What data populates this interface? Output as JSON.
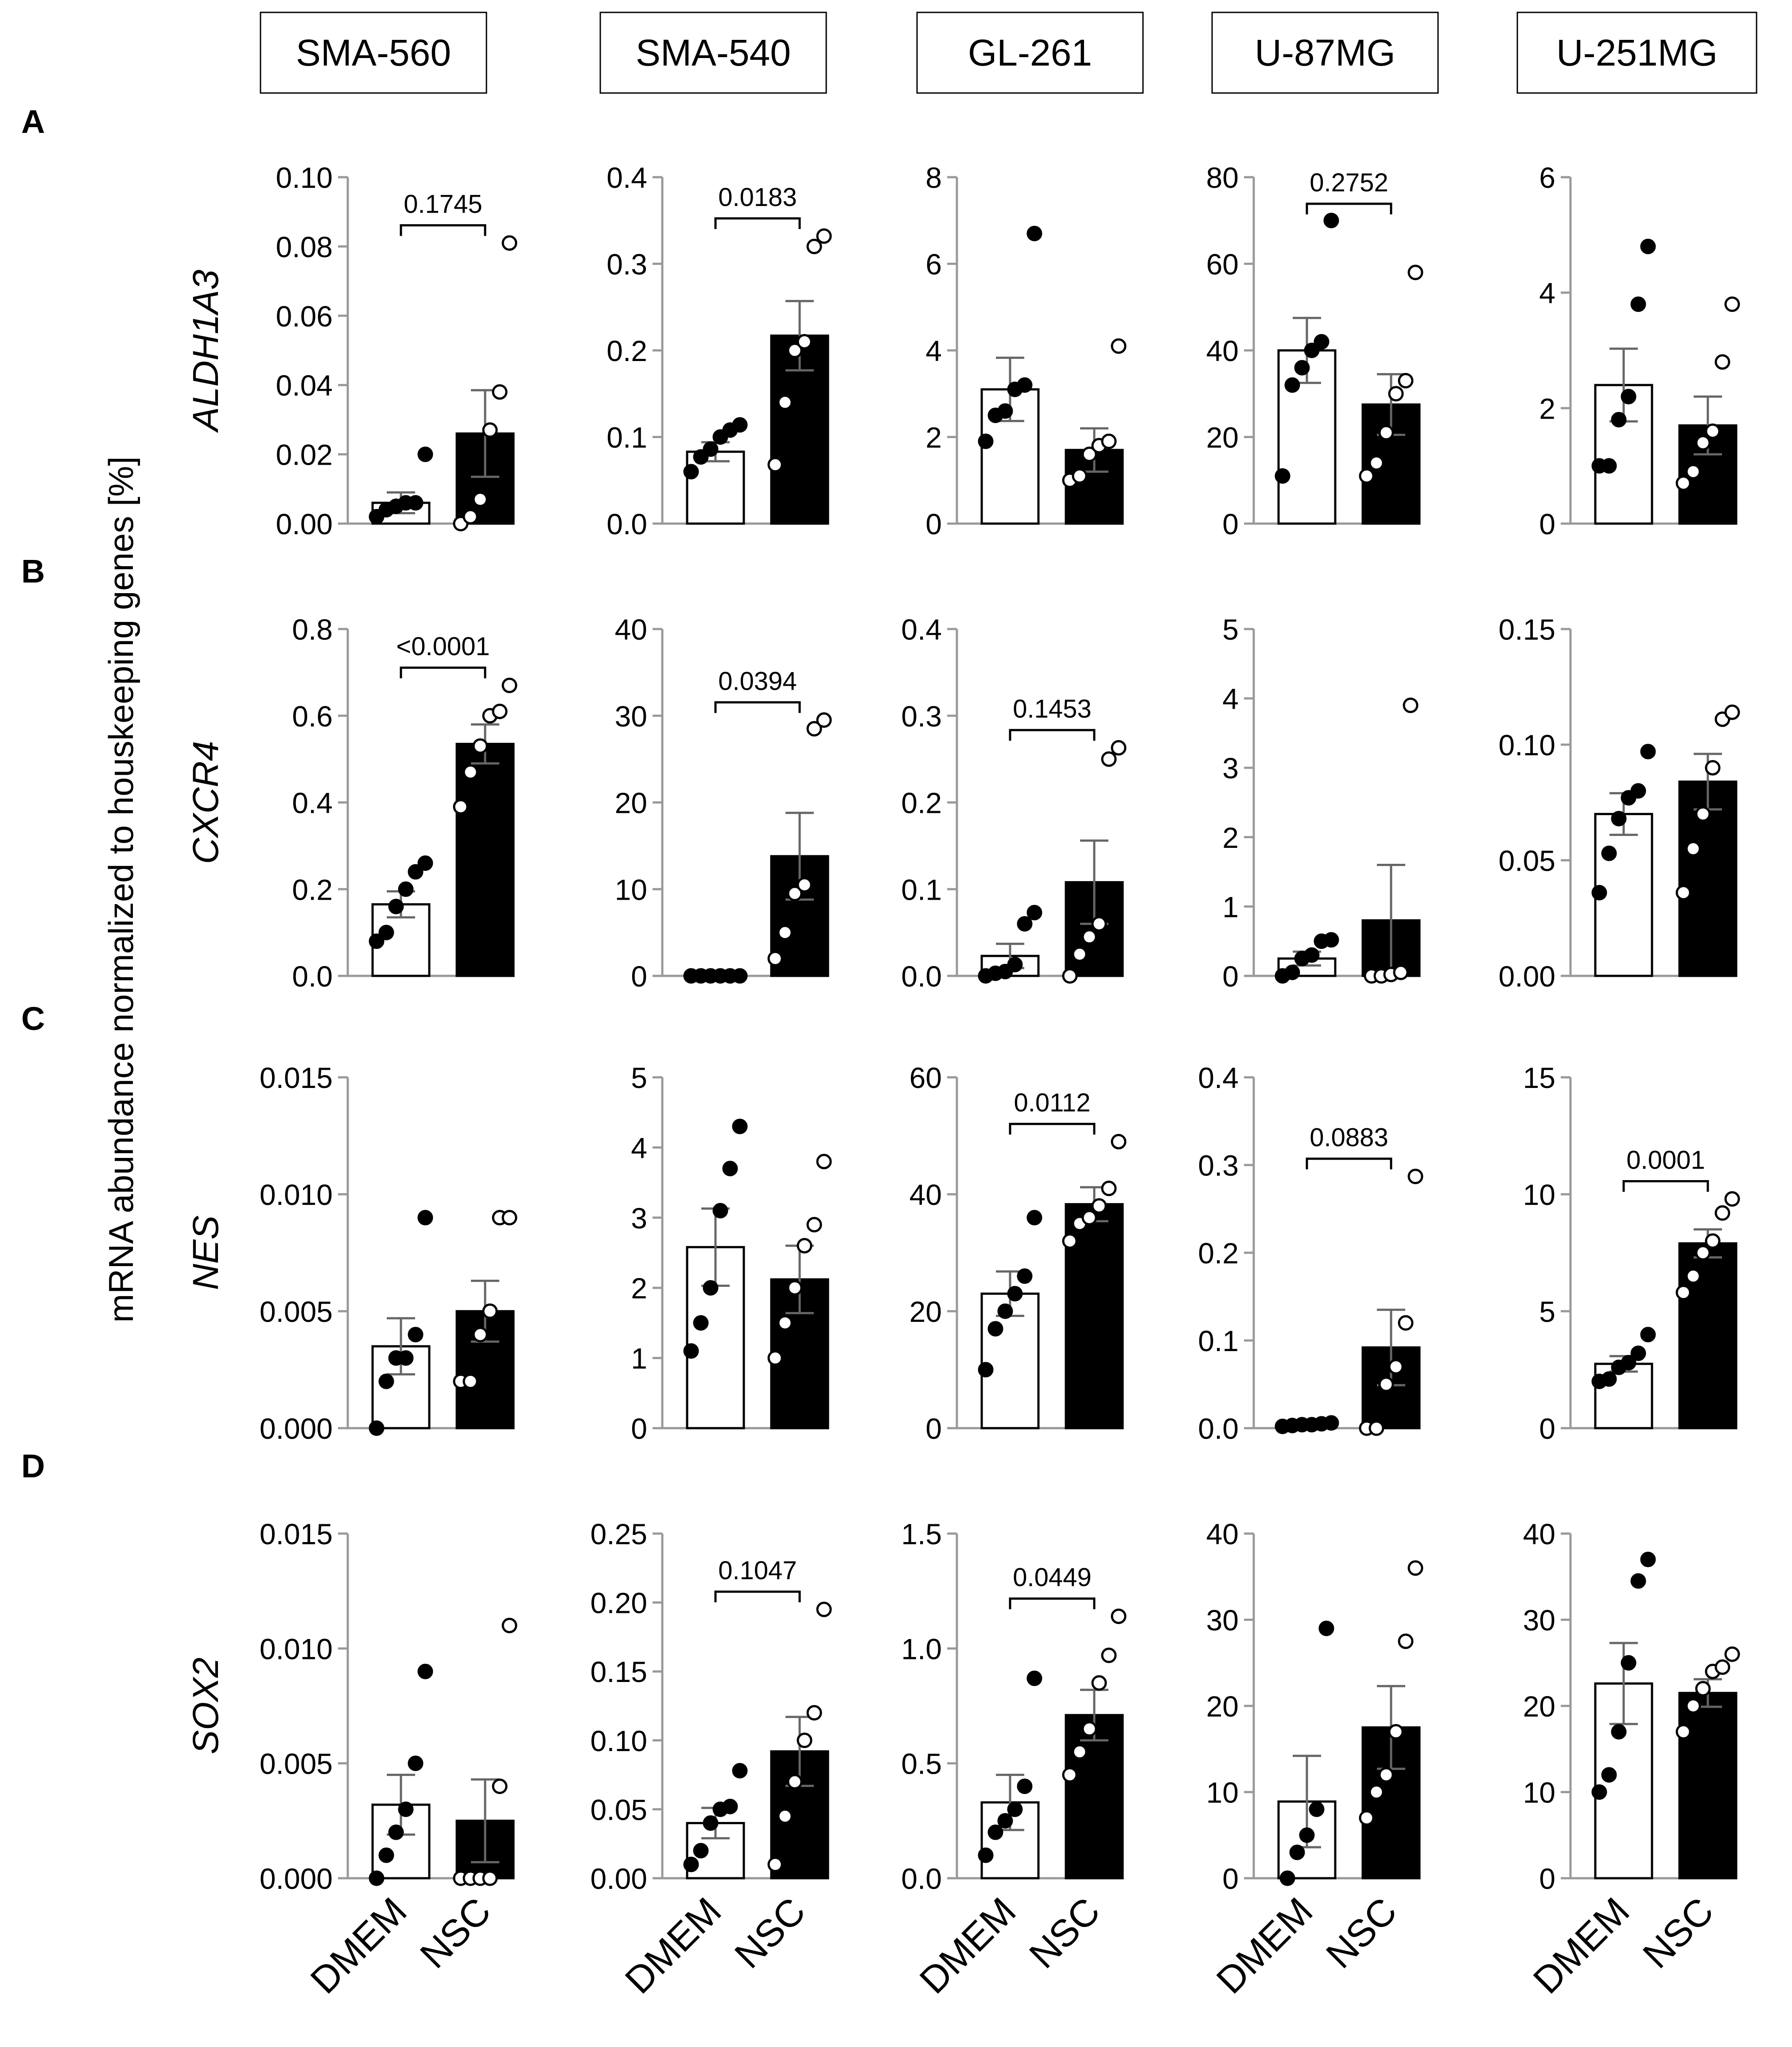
{
  "figure": {
    "y_axis_title": "mRNA abundance normalized to houskeeping genes [%]",
    "x_categories": [
      "DMEM",
      "NSC"
    ]
  },
  "cell_lines": [
    "SMA-560",
    "SMA-540",
    "GL-261",
    "U-87MG",
    "U-251MG"
  ],
  "rows": [
    {
      "label": "A",
      "gene": "ALDH1A3"
    },
    {
      "label": "B",
      "gene": "CXCR4"
    },
    {
      "label": "C",
      "gene": "NES"
    },
    {
      "label": "D",
      "gene": "SOX2"
    }
  ],
  "colors": {
    "dmem_fill": "#ffffff",
    "nsc_fill": "#000000",
    "axis": "#999999",
    "error": "#666666"
  },
  "chart_data": [
    {
      "type": "bar",
      "row": "A",
      "gene": "ALDH1A3",
      "cell_line": "SMA-560",
      "categories": [
        "DMEM",
        "NSC"
      ],
      "ylim": [
        0,
        0.1
      ],
      "ticks": [
        0,
        0.02,
        0.04,
        0.06,
        0.08,
        0.1
      ],
      "tick_labels": [
        "0.00",
        "0.02",
        "0.04",
        "0.06",
        "0.08",
        "0.10"
      ],
      "means": [
        0.006,
        0.026
      ],
      "sem": [
        0.003,
        0.0125
      ],
      "points": [
        [
          0.002,
          0.004,
          0.005,
          0.006,
          0.006,
          0.02
        ],
        [
          0.0,
          0.002,
          0.007,
          0.027,
          0.038,
          0.081
        ]
      ],
      "pvalue": "0.1745"
    },
    {
      "type": "bar",
      "row": "A",
      "gene": "ALDH1A3",
      "cell_line": "SMA-540",
      "categories": [
        "DMEM",
        "NSC"
      ],
      "ylim": [
        0,
        0.4
      ],
      "ticks": [
        0,
        0.1,
        0.2,
        0.3,
        0.4
      ],
      "tick_labels": [
        "0.0",
        "0.1",
        "0.2",
        "0.3",
        "0.4"
      ],
      "means": [
        0.083,
        0.217
      ],
      "sem": [
        0.011,
        0.04
      ],
      "points": [
        [
          0.06,
          0.077,
          0.086,
          0.1,
          0.108,
          0.114
        ],
        [
          0.068,
          0.14,
          0.2,
          0.21,
          0.32,
          0.332
        ]
      ],
      "pvalue": "0.0183"
    },
    {
      "type": "bar",
      "row": "A",
      "gene": "ALDH1A3",
      "cell_line": "GL-261",
      "categories": [
        "DMEM",
        "NSC"
      ],
      "ylim": [
        0,
        8
      ],
      "ticks": [
        0,
        2,
        4,
        6,
        8
      ],
      "tick_labels": [
        "0",
        "2",
        "4",
        "6",
        "8"
      ],
      "means": [
        3.1,
        1.7
      ],
      "sem": [
        0.73,
        0.5
      ],
      "points": [
        [
          1.9,
          2.5,
          2.6,
          3.1,
          3.2,
          6.7
        ],
        [
          1.0,
          1.1,
          1.6,
          1.8,
          1.9,
          4.1
        ]
      ],
      "pvalue": ""
    },
    {
      "type": "bar",
      "row": "A",
      "gene": "ALDH1A3",
      "cell_line": "U-87MG",
      "categories": [
        "DMEM",
        "NSC"
      ],
      "ylim": [
        0,
        80
      ],
      "ticks": [
        0,
        20,
        40,
        60,
        80
      ],
      "tick_labels": [
        "0",
        "20",
        "40",
        "60",
        "80"
      ],
      "means": [
        40,
        27.5
      ],
      "sem": [
        7.5,
        7.0
      ],
      "points": [
        [
          11,
          32,
          36,
          40,
          42,
          70
        ],
        [
          11,
          14,
          21,
          30,
          33,
          58
        ]
      ],
      "pvalue": "0.2752"
    },
    {
      "type": "bar",
      "row": "A",
      "gene": "ALDH1A3",
      "cell_line": "U-251MG",
      "categories": [
        "DMEM",
        "NSC"
      ],
      "ylim": [
        0,
        6
      ],
      "ticks": [
        0,
        2,
        4,
        6
      ],
      "tick_labels": [
        "0",
        "2",
        "4",
        "6"
      ],
      "means": [
        2.4,
        1.7
      ],
      "sem": [
        0.63,
        0.5
      ],
      "points": [
        [
          1.0,
          1.0,
          1.8,
          2.2,
          3.8,
          4.8
        ],
        [
          0.7,
          0.9,
          1.4,
          1.6,
          2.8,
          3.8
        ]
      ],
      "pvalue": ""
    },
    {
      "type": "bar",
      "row": "B",
      "gene": "CXCR4",
      "cell_line": "SMA-560",
      "categories": [
        "DMEM",
        "NSC"
      ],
      "ylim": [
        0,
        0.8
      ],
      "ticks": [
        0,
        0.2,
        0.4,
        0.6,
        0.8
      ],
      "tick_labels": [
        "0.0",
        "0.2",
        "0.4",
        "0.6",
        "0.8"
      ],
      "means": [
        0.165,
        0.535
      ],
      "sem": [
        0.03,
        0.045
      ],
      "points": [
        [
          0.08,
          0.1,
          0.16,
          0.2,
          0.24,
          0.26
        ],
        [
          0.39,
          0.47,
          0.53,
          0.6,
          0.61,
          0.67
        ]
      ],
      "pvalue": "<0.0001"
    },
    {
      "type": "bar",
      "row": "B",
      "gene": "CXCR4",
      "cell_line": "SMA-540",
      "categories": [
        "DMEM",
        "NSC"
      ],
      "ylim": [
        0,
        40
      ],
      "ticks": [
        0,
        10,
        20,
        30,
        40
      ],
      "tick_labels": [
        "0",
        "10",
        "20",
        "30",
        "40"
      ],
      "means": [
        0.05,
        13.8
      ],
      "sem": [
        0.02,
        5.0
      ],
      "points": [
        [
          0.0,
          0.0,
          0.0,
          0.0,
          0.0,
          0.0
        ],
        [
          2.0,
          5.0,
          9.5,
          10.5,
          28.5,
          29.5
        ]
      ],
      "pvalue": "0.0394"
    },
    {
      "type": "bar",
      "row": "B",
      "gene": "CXCR4",
      "cell_line": "GL-261",
      "categories": [
        "DMEM",
        "NSC"
      ],
      "ylim": [
        0,
        0.4
      ],
      "ticks": [
        0,
        0.1,
        0.2,
        0.3,
        0.4
      ],
      "tick_labels": [
        "0.0",
        "0.1",
        "0.2",
        "0.3",
        "0.4"
      ],
      "means": [
        0.023,
        0.108
      ],
      "sem": [
        0.014,
        0.048
      ],
      "points": [
        [
          0.0,
          0.003,
          0.005,
          0.013,
          0.06,
          0.073
        ],
        [
          0.0,
          0.025,
          0.045,
          0.06,
          0.25,
          0.263
        ]
      ],
      "pvalue": "0.1453"
    },
    {
      "type": "bar",
      "row": "B",
      "gene": "CXCR4",
      "cell_line": "U-87MG",
      "categories": [
        "DMEM",
        "NSC"
      ],
      "ylim": [
        0,
        5
      ],
      "ticks": [
        0,
        1,
        2,
        3,
        4,
        5
      ],
      "tick_labels": [
        "0",
        "1",
        "2",
        "3",
        "4",
        "5"
      ],
      "means": [
        0.25,
        0.8
      ],
      "sem": [
        0.1,
        0.8
      ],
      "points": [
        [
          0.0,
          0.05,
          0.25,
          0.3,
          0.5,
          0.52
        ],
        [
          0.0,
          0.0,
          0.02,
          0.05,
          3.9
        ]
      ],
      "pvalue": ""
    },
    {
      "type": "bar",
      "row": "B",
      "gene": "CXCR4",
      "cell_line": "U-251MG",
      "categories": [
        "DMEM",
        "NSC"
      ],
      "ylim": [
        0,
        0.15
      ],
      "ticks": [
        0,
        0.05,
        0.1,
        0.15
      ],
      "tick_labels": [
        "0.00",
        "0.05",
        "0.10",
        "0.15"
      ],
      "means": [
        0.07,
        0.084
      ],
      "sem": [
        0.009,
        0.012
      ],
      "points": [
        [
          0.036,
          0.053,
          0.068,
          0.077,
          0.08,
          0.097
        ],
        [
          0.036,
          0.055,
          0.07,
          0.09,
          0.111,
          0.114
        ]
      ],
      "pvalue": ""
    },
    {
      "type": "bar",
      "row": "C",
      "gene": "NES",
      "cell_line": "SMA-560",
      "categories": [
        "DMEM",
        "NSC"
      ],
      "ylim": [
        0,
        0.015
      ],
      "ticks": [
        0,
        0.005,
        0.01,
        0.015
      ],
      "tick_labels": [
        "0.000",
        "0.005",
        "0.010",
        "0.015"
      ],
      "means": [
        0.0035,
        0.005
      ],
      "sem": [
        0.0012,
        0.0013
      ],
      "points": [
        [
          0.0,
          0.002,
          0.003,
          0.003,
          0.004,
          0.009
        ],
        [
          0.002,
          0.002,
          0.004,
          0.005,
          0.009,
          0.009
        ]
      ],
      "pvalue": ""
    },
    {
      "type": "bar",
      "row": "C",
      "gene": "NES",
      "cell_line": "SMA-540",
      "categories": [
        "DMEM",
        "NSC"
      ],
      "ylim": [
        0,
        5
      ],
      "ticks": [
        0,
        1,
        2,
        3,
        4,
        5
      ],
      "tick_labels": [
        "0",
        "1",
        "2",
        "3",
        "4",
        "5"
      ],
      "means": [
        2.58,
        2.12
      ],
      "sem": [
        0.55,
        0.48
      ],
      "points": [
        [
          1.1,
          1.5,
          2.0,
          3.1,
          3.7,
          4.3
        ],
        [
          1.0,
          1.5,
          2.0,
          2.6,
          2.9,
          3.8
        ]
      ],
      "pvalue": ""
    },
    {
      "type": "bar",
      "row": "C",
      "gene": "NES",
      "cell_line": "GL-261",
      "categories": [
        "DMEM",
        "NSC"
      ],
      "ylim": [
        0,
        60
      ],
      "ticks": [
        0,
        20,
        40,
        60
      ],
      "tick_labels": [
        "0",
        "20",
        "40",
        "60"
      ],
      "means": [
        23,
        38.3
      ],
      "sem": [
        3.8,
        2.9
      ],
      "points": [
        [
          10,
          17,
          20,
          23,
          26,
          36
        ],
        [
          32,
          35,
          36,
          38,
          41,
          49
        ]
      ],
      "pvalue": "0.0112"
    },
    {
      "type": "bar",
      "row": "C",
      "gene": "NES",
      "cell_line": "U-87MG",
      "categories": [
        "DMEM",
        "NSC"
      ],
      "ylim": [
        0,
        0.4
      ],
      "ticks": [
        0,
        0.1,
        0.2,
        0.3,
        0.4
      ],
      "tick_labels": [
        "0.0",
        "0.1",
        "0.2",
        "0.3",
        "0.4"
      ],
      "means": [
        0.004,
        0.092
      ],
      "sem": [
        0.001,
        0.043
      ],
      "points": [
        [
          0.002,
          0.003,
          0.004,
          0.004,
          0.005,
          0.006
        ],
        [
          0.0,
          0.0,
          0.05,
          0.07,
          0.12,
          0.287
        ]
      ],
      "pvalue": "0.0883"
    },
    {
      "type": "bar",
      "row": "C",
      "gene": "NES",
      "cell_line": "U-251MG",
      "categories": [
        "DMEM",
        "NSC"
      ],
      "ylim": [
        0,
        15
      ],
      "ticks": [
        0,
        5,
        10,
        15
      ],
      "tick_labels": [
        "0",
        "5",
        "10",
        "15"
      ],
      "means": [
        2.75,
        7.9
      ],
      "sem": [
        0.33,
        0.6
      ],
      "points": [
        [
          2.0,
          2.1,
          2.6,
          2.8,
          3.2,
          4.0
        ],
        [
          5.8,
          6.5,
          7.5,
          8.0,
          9.2,
          9.8
        ]
      ],
      "pvalue": "0.0001"
    },
    {
      "type": "bar",
      "row": "D",
      "gene": "SOX2",
      "cell_line": "SMA-560",
      "categories": [
        "DMEM",
        "NSC"
      ],
      "ylim": [
        0,
        0.015
      ],
      "ticks": [
        0,
        0.005,
        0.01,
        0.015
      ],
      "tick_labels": [
        "0.000",
        "0.005",
        "0.010",
        "0.015"
      ],
      "means": [
        0.0032,
        0.0025
      ],
      "sem": [
        0.0013,
        0.0018
      ],
      "points": [
        [
          0.0,
          0.001,
          0.002,
          0.003,
          0.005,
          0.009
        ],
        [
          0.0,
          0.0,
          0.0,
          0.0,
          0.004,
          0.011
        ]
      ],
      "pvalue": ""
    },
    {
      "type": "bar",
      "row": "D",
      "gene": "SOX2",
      "cell_line": "SMA-540",
      "categories": [
        "DMEM",
        "NSC"
      ],
      "ylim": [
        0,
        0.25
      ],
      "ticks": [
        0,
        0.05,
        0.1,
        0.15,
        0.2,
        0.25
      ],
      "tick_labels": [
        "0.00",
        "0.05",
        "0.10",
        "0.15",
        "0.20",
        "0.25"
      ],
      "means": [
        0.04,
        0.092
      ],
      "sem": [
        0.011,
        0.025
      ],
      "points": [
        [
          0.01,
          0.02,
          0.04,
          0.05,
          0.052,
          0.078
        ],
        [
          0.01,
          0.045,
          0.07,
          0.1,
          0.12,
          0.195
        ]
      ],
      "pvalue": "0.1047"
    },
    {
      "type": "bar",
      "row": "D",
      "gene": "SOX2",
      "cell_line": "GL-261",
      "categories": [
        "DMEM",
        "NSC"
      ],
      "ylim": [
        0,
        1.5
      ],
      "ticks": [
        0,
        0.5,
        1,
        1.5
      ],
      "tick_labels": [
        "0.0",
        "0.5",
        "1.0",
        "1.5"
      ],
      "means": [
        0.33,
        0.71
      ],
      "sem": [
        0.12,
        0.11
      ],
      "points": [
        [
          0.1,
          0.2,
          0.25,
          0.3,
          0.4,
          0.87
        ],
        [
          0.45,
          0.55,
          0.65,
          0.85,
          0.97,
          1.14
        ]
      ],
      "pvalue": "0.0449"
    },
    {
      "type": "bar",
      "row": "D",
      "gene": "SOX2",
      "cell_line": "U-87MG",
      "categories": [
        "DMEM",
        "NSC"
      ],
      "ylim": [
        0,
        40
      ],
      "ticks": [
        0,
        10,
        20,
        30,
        40
      ],
      "tick_labels": [
        "0",
        "10",
        "20",
        "30",
        "40"
      ],
      "means": [
        8.9,
        17.5
      ],
      "sem": [
        5.3,
        4.8
      ],
      "points": [
        [
          0,
          3,
          5,
          8,
          29
        ],
        [
          7,
          10,
          12,
          17,
          27.5,
          36
        ]
      ],
      "pvalue": ""
    },
    {
      "type": "bar",
      "row": "D",
      "gene": "SOX2",
      "cell_line": "U-251MG",
      "categories": [
        "DMEM",
        "NSC"
      ],
      "ylim": [
        0,
        40
      ],
      "ticks": [
        0,
        10,
        20,
        30,
        40
      ],
      "tick_labels": [
        "0",
        "10",
        "20",
        "30",
        "40"
      ],
      "means": [
        22.6,
        21.5
      ],
      "sem": [
        4.7,
        1.6
      ],
      "points": [
        [
          10,
          12,
          17,
          25,
          34.5,
          37
        ],
        [
          17,
          20,
          22,
          24,
          24.5,
          26
        ]
      ],
      "pvalue": ""
    }
  ]
}
